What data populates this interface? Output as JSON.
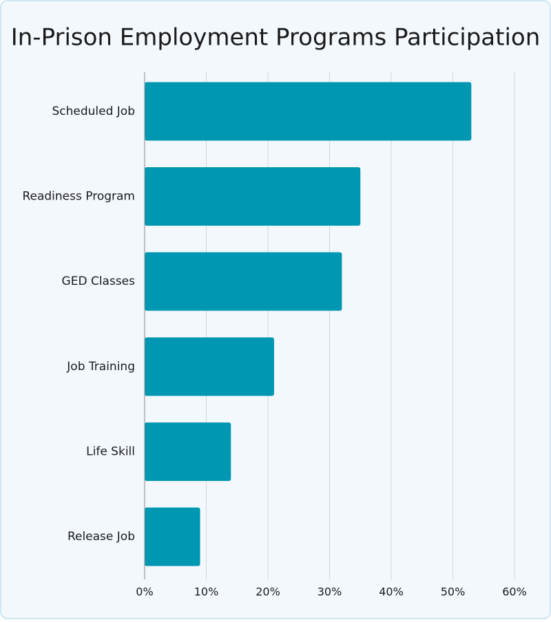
{
  "chart_data": {
    "type": "bar",
    "orientation": "horizontal",
    "title": "In-Prison Employment Programs Participation",
    "categories": [
      "Scheduled Job",
      "Readiness Program",
      "GED Classes",
      "Job Training",
      "Life Skill",
      "Release Job"
    ],
    "values": [
      53,
      35,
      32,
      21,
      14,
      9
    ],
    "color": "#0097b2",
    "xlim": [
      0,
      60
    ],
    "xticks": [
      {
        "value": 0,
        "label": "0%"
      },
      {
        "value": 10,
        "label": "10%"
      },
      {
        "value": 20,
        "label": "20%"
      },
      {
        "value": 30,
        "label": "30%"
      },
      {
        "value": 40,
        "label": "40%"
      },
      {
        "value": 50,
        "label": "50%"
      },
      {
        "value": 60,
        "label": "60%"
      }
    ],
    "grid": true
  }
}
